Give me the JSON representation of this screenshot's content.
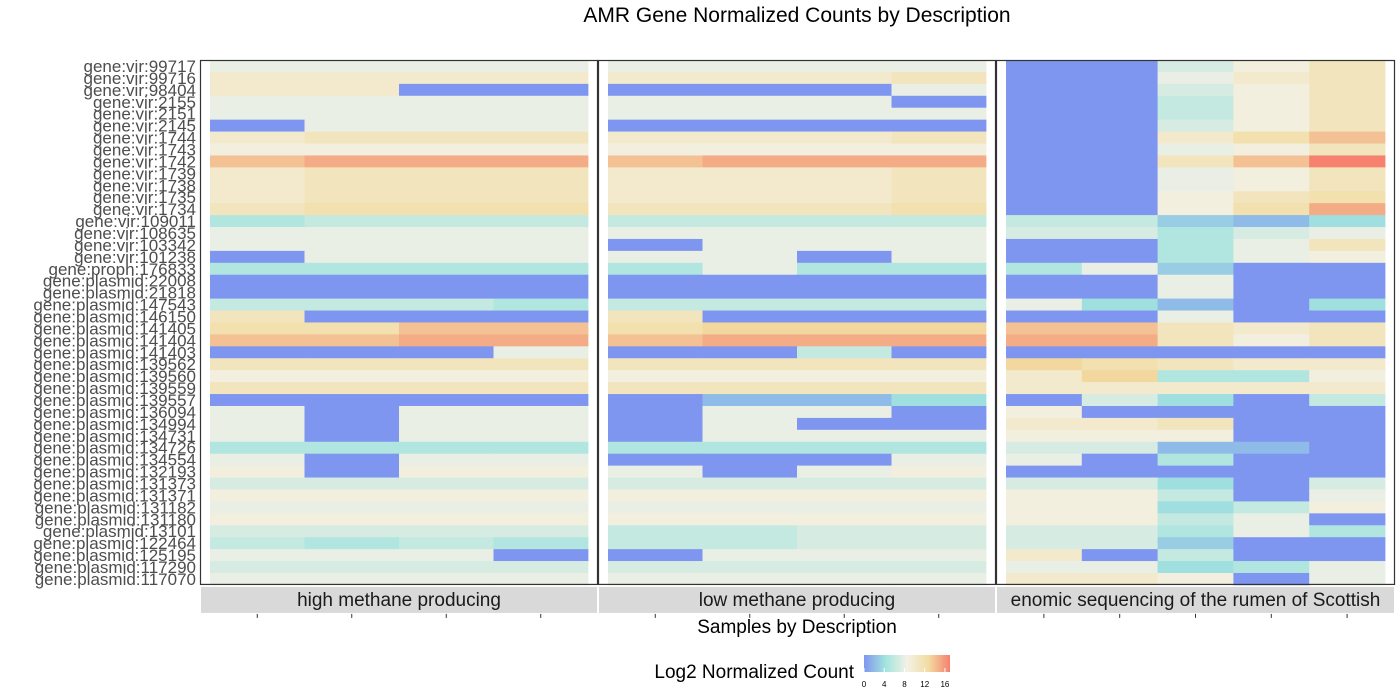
{
  "chart_data": {
    "type": "heatmap",
    "title": "AMR Gene Normalized Counts by Description",
    "xlabel": "Samples by Description",
    "legend": {
      "title": "Log2 Normalized Count",
      "ticks": [
        "0",
        "4",
        "8",
        "12",
        "16"
      ],
      "min": 0,
      "max": 17,
      "position": "bottom"
    },
    "colors": [
      "#7f96f0",
      "#a2e4de",
      "#f3f1e6",
      "#f2dca2",
      "#f6816f"
    ],
    "genes": [
      "gene:vir:99717",
      "gene:vir:99716",
      "gene:vir:98404",
      "gene:vir:2155",
      "gene:vir:2151",
      "gene:vir:2145",
      "gene:vir:1744",
      "gene:vir:1743",
      "gene:vir:1742",
      "gene:vir:1739",
      "gene:vir:1738",
      "gene:vir:1735",
      "gene:vir:1734",
      "gene:vir:109011",
      "gene:vir:108635",
      "gene:vir:103342",
      "gene:vir:101238",
      "gene:proph:176833",
      "gene:plasmid:22008",
      "gene:plasmid:21818",
      "gene:plasmid:147543",
      "gene:plasmid:146150",
      "gene:plasmid:141405",
      "gene:plasmid:141404",
      "gene:plasmid:141403",
      "gene:plasmid:139562",
      "gene:plasmid:139560",
      "gene:plasmid:139559",
      "gene:plasmid:139557",
      "gene:plasmid:136094",
      "gene:plasmid:134994",
      "gene:plasmid:134731",
      "gene:plasmid:134726",
      "gene:plasmid:134554",
      "gene:plasmid:132193",
      "gene:plasmid:131373",
      "gene:plasmid:131371",
      "gene:plasmid:131182",
      "gene:plasmid:131180",
      "gene:plasmid:13101",
      "gene:plasmid:122464",
      "gene:plasmid:125195",
      "gene:plasmid:117290",
      "gene:plasmid:117070"
    ],
    "panels": [
      {
        "label": "high methane producing",
        "columns": 4,
        "values": [
          [
            8,
            8,
            8,
            8
          ],
          [
            10,
            10,
            10,
            10
          ],
          [
            10,
            10,
            0,
            0
          ],
          [
            8,
            8,
            8,
            8
          ],
          [
            8,
            8,
            8,
            8
          ],
          [
            0,
            8,
            8,
            8
          ],
          [
            10,
            11,
            11,
            11
          ],
          [
            9,
            9,
            9,
            9
          ],
          [
            14,
            15,
            15,
            15
          ],
          [
            10,
            11,
            11,
            11
          ],
          [
            10,
            11,
            11,
            11
          ],
          [
            10,
            11,
            11,
            11
          ],
          [
            11,
            12,
            12,
            12
          ],
          [
            5,
            6,
            6,
            6
          ],
          [
            8,
            8,
            8,
            8
          ],
          [
            8,
            8,
            8,
            8
          ],
          [
            0,
            8,
            8,
            8
          ],
          [
            5,
            5,
            5,
            5
          ],
          [
            0,
            0,
            0,
            0
          ],
          [
            0,
            0,
            0,
            0
          ],
          [
            6,
            6,
            6,
            5
          ],
          [
            11,
            0,
            0,
            0
          ],
          [
            12,
            12,
            14,
            14
          ],
          [
            14,
            14,
            15,
            15
          ],
          [
            0,
            0,
            0,
            8
          ],
          [
            11,
            11,
            11,
            11
          ],
          [
            9,
            9,
            9,
            9
          ],
          [
            11,
            11,
            11,
            11
          ],
          [
            0,
            0,
            0,
            0
          ],
          [
            8,
            0,
            8,
            8
          ],
          [
            8,
            0,
            8,
            8
          ],
          [
            8,
            0,
            8,
            8
          ],
          [
            5,
            5,
            5,
            5
          ],
          [
            8,
            0,
            8,
            8
          ],
          [
            9,
            0,
            9,
            9
          ],
          [
            7,
            7,
            7,
            7
          ],
          [
            9,
            9,
            9,
            9
          ],
          [
            8,
            8,
            8,
            8
          ],
          [
            9,
            9,
            9,
            9
          ],
          [
            7,
            7,
            7,
            7
          ],
          [
            6,
            5,
            6,
            5
          ],
          [
            8,
            8,
            8,
            0
          ],
          [
            7,
            7,
            7,
            7
          ],
          [
            8,
            8,
            8,
            8
          ]
        ]
      },
      {
        "label": "low methane producing",
        "columns": 4,
        "values": [
          [
            8,
            8,
            8,
            8
          ],
          [
            10,
            10,
            10,
            11
          ],
          [
            0,
            0,
            0,
            8
          ],
          [
            8,
            8,
            8,
            0
          ],
          [
            8,
            8,
            8,
            8
          ],
          [
            0,
            0,
            0,
            0
          ],
          [
            10,
            10,
            10,
            11
          ],
          [
            9,
            9,
            9,
            9
          ],
          [
            14,
            15,
            15,
            15
          ],
          [
            10,
            10,
            10,
            11
          ],
          [
            10,
            10,
            10,
            11
          ],
          [
            10,
            10,
            10,
            11
          ],
          [
            11,
            11,
            11,
            12
          ],
          [
            6,
            6,
            6,
            6
          ],
          [
            8,
            8,
            8,
            8
          ],
          [
            0,
            8,
            8,
            8
          ],
          [
            8,
            8,
            0,
            8
          ],
          [
            5,
            8,
            5,
            5
          ],
          [
            0,
            0,
            0,
            0
          ],
          [
            0,
            0,
            0,
            0
          ],
          [
            6,
            6,
            6,
            6
          ],
          [
            11,
            0,
            0,
            0
          ],
          [
            12,
            13,
            13,
            13
          ],
          [
            14,
            15,
            15,
            15
          ],
          [
            0,
            0,
            6,
            0
          ],
          [
            11,
            11,
            11,
            11
          ],
          [
            9,
            9,
            9,
            9
          ],
          [
            11,
            11,
            11,
            11
          ],
          [
            0,
            2,
            2,
            4
          ],
          [
            0,
            8,
            8,
            0
          ],
          [
            0,
            8,
            0,
            0
          ],
          [
            0,
            8,
            8,
            8
          ],
          [
            5,
            5,
            5,
            5
          ],
          [
            0,
            0,
            0,
            8
          ],
          [
            8,
            0,
            8,
            9
          ],
          [
            7,
            7,
            7,
            7
          ],
          [
            9,
            9,
            9,
            9
          ],
          [
            8,
            8,
            8,
            8
          ],
          [
            9,
            9,
            9,
            9
          ],
          [
            6,
            6,
            7,
            7
          ],
          [
            6,
            6,
            7,
            7
          ],
          [
            0,
            8,
            8,
            8
          ],
          [
            7,
            7,
            7,
            7
          ],
          [
            8,
            8,
            8,
            8
          ]
        ]
      },
      {
        "label": "enomic sequencing of the rumen of Scottish",
        "columns": 5,
        "values": [
          [
            0,
            0,
            7,
            9,
            11
          ],
          [
            0,
            0,
            8,
            10,
            11
          ],
          [
            0,
            0,
            7,
            9,
            11
          ],
          [
            0,
            0,
            6,
            9,
            11
          ],
          [
            0,
            0,
            6,
            9,
            11
          ],
          [
            0,
            0,
            7,
            9,
            11
          ],
          [
            0,
            0,
            10,
            12,
            14
          ],
          [
            0,
            0,
            8,
            9,
            11
          ],
          [
            0,
            0,
            11,
            14,
            17
          ],
          [
            0,
            0,
            8,
            9,
            11
          ],
          [
            0,
            0,
            8,
            9,
            11
          ],
          [
            0,
            0,
            9,
            11,
            12
          ],
          [
            0,
            0,
            9,
            12,
            15
          ],
          [
            6,
            6,
            3,
            2,
            4
          ],
          [
            7,
            7,
            5,
            7,
            8
          ],
          [
            0,
            0,
            5,
            8,
            11
          ],
          [
            0,
            0,
            5,
            8,
            9
          ],
          [
            5,
            8,
            3,
            0,
            0
          ],
          [
            0,
            0,
            8,
            0,
            0
          ],
          [
            0,
            0,
            8,
            0,
            0
          ],
          [
            8,
            4,
            2,
            0,
            4
          ],
          [
            0,
            0,
            8,
            0,
            0
          ],
          [
            14,
            14,
            11,
            10,
            11
          ],
          [
            15,
            15,
            11,
            9,
            11
          ],
          [
            0,
            0,
            0,
            0,
            0
          ],
          [
            13,
            12,
            11,
            10,
            10
          ],
          [
            10,
            13,
            5,
            5,
            9
          ],
          [
            10,
            10,
            10,
            10,
            10
          ],
          [
            0,
            7,
            4,
            0,
            6
          ],
          [
            9,
            0,
            0,
            0,
            0
          ],
          [
            10,
            10,
            11,
            0,
            0
          ],
          [
            9,
            9,
            9,
            0,
            0
          ],
          [
            7,
            7,
            2,
            2,
            0
          ],
          [
            8,
            0,
            5,
            0,
            0
          ],
          [
            0,
            0,
            0,
            0,
            0
          ],
          [
            7,
            7,
            4,
            0,
            7
          ],
          [
            9,
            9,
            6,
            0,
            8
          ],
          [
            9,
            9,
            4,
            6,
            9
          ],
          [
            9,
            9,
            6,
            8,
            0
          ],
          [
            7,
            7,
            5,
            8,
            5
          ],
          [
            7,
            7,
            3,
            0,
            0
          ],
          [
            10,
            0,
            6,
            0,
            0
          ],
          [
            8,
            8,
            4,
            5,
            8
          ],
          [
            10,
            10,
            9,
            0,
            8
          ]
        ]
      }
    ]
  }
}
